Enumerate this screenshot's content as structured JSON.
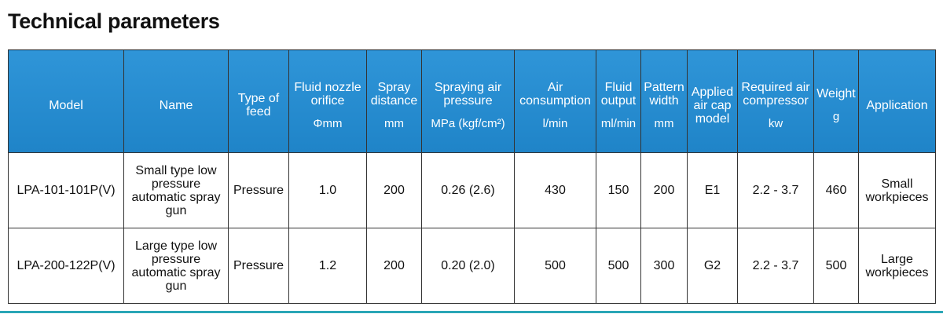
{
  "header": {
    "title": "Technical parameters"
  },
  "table": {
    "columns": [
      {
        "label": "Model"
      },
      {
        "label": "Name"
      },
      {
        "label": "Type of feed"
      },
      {
        "label": "Fluid nozzle orifice",
        "unit": "Φmm"
      },
      {
        "label": "Spray distance",
        "unit": "mm"
      },
      {
        "label": "Spraying air pressure",
        "unit": "MPa (kgf/cm²)"
      },
      {
        "label": "Air consumption",
        "unit": "l/min"
      },
      {
        "label": "Fluid output",
        "unit": "ml/min"
      },
      {
        "label": "Pattern width",
        "unit": "mm"
      },
      {
        "label": "Applied air cap model"
      },
      {
        "label": "Required air compressor",
        "unit": "kw"
      },
      {
        "label": "Weight",
        "unit": "g"
      },
      {
        "label": "Application"
      }
    ],
    "rows": [
      [
        "LPA-101-101P(V)",
        "Small type low pressure automatic spray gun",
        "Pressure",
        "1.0",
        "200",
        "0.26 (2.6)",
        "430",
        "150",
        "200",
        "E1",
        "2.2 - 3.7",
        "460",
        "Small workpieces"
      ],
      [
        "LPA-200-122P(V)",
        "Large type low pressure automatic spray gun",
        "Pressure",
        "1.2",
        "200",
        "0.20 (2.0)",
        "500",
        "500",
        "300",
        "G2",
        "2.2 - 3.7",
        "500",
        "Large workpieces"
      ]
    ]
  }
}
